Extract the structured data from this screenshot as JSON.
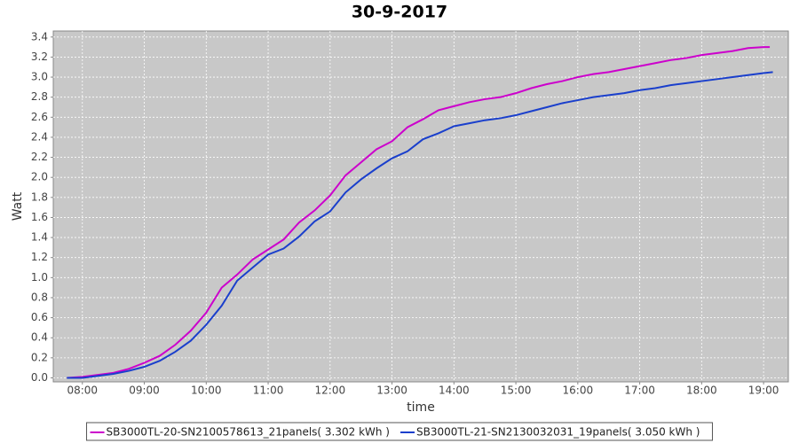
{
  "chart_data": {
    "type": "line",
    "title": "30-9-2017",
    "x_label": "time",
    "y_label": "Watt",
    "xlim": [
      7.53,
      19.4
    ],
    "ylim": [
      -0.04,
      3.46
    ],
    "xticks": [
      {
        "value": 8,
        "label": "08:00"
      },
      {
        "value": 9,
        "label": "09:00"
      },
      {
        "value": 10,
        "label": "10:00"
      },
      {
        "value": 11,
        "label": "11:00"
      },
      {
        "value": 12,
        "label": "12:00"
      },
      {
        "value": 13,
        "label": "13:00"
      },
      {
        "value": 14,
        "label": "14:00"
      },
      {
        "value": 15,
        "label": "15:00"
      },
      {
        "value": 16,
        "label": "16:00"
      },
      {
        "value": 17,
        "label": "17:00"
      },
      {
        "value": 18,
        "label": "18:00"
      },
      {
        "value": 19,
        "label": "19:00"
      }
    ],
    "yticks": [
      {
        "value": 0,
        "label": "0.0"
      },
      0.2,
      0.4,
      0.6,
      0.8,
      {
        "value": 1,
        "label": "1.0"
      },
      1.2,
      1.4,
      1.6,
      1.8,
      {
        "value": 2,
        "label": "2.0"
      },
      2.2,
      2.4,
      2.6,
      2.8,
      {
        "value": 3,
        "label": "3.0"
      },
      3.2,
      3.4
    ],
    "grid": true,
    "legend": "bottom",
    "series": [
      {
        "name": "SB3000TL-20-SN2100578613_21panels( 3.302 kWh )",
        "color": "#cc00cc",
        "x": [
          7.75,
          8,
          8.25,
          8.5,
          8.75,
          9,
          9.25,
          9.5,
          9.75,
          10,
          10.25,
          10.5,
          10.75,
          11,
          11.25,
          11.5,
          11.75,
          12,
          12.25,
          12.5,
          12.75,
          13,
          13.25,
          13.5,
          13.75,
          14,
          14.25,
          14.5,
          14.75,
          15,
          15.25,
          15.5,
          15.75,
          16,
          16.25,
          16.5,
          16.75,
          17,
          17.25,
          17.5,
          17.75,
          18,
          18.25,
          18.5,
          18.75,
          19,
          19.1
        ],
        "values": [
          0,
          0.01,
          0.03,
          0.05,
          0.09,
          0.15,
          0.22,
          0.33,
          0.47,
          0.65,
          0.9,
          1.03,
          1.18,
          1.28,
          1.38,
          1.55,
          1.67,
          1.82,
          2.02,
          2.15,
          2.28,
          2.36,
          2.5,
          2.58,
          2.67,
          2.71,
          2.75,
          2.78,
          2.8,
          2.84,
          2.89,
          2.93,
          2.96,
          3.0,
          3.03,
          3.05,
          3.08,
          3.11,
          3.14,
          3.17,
          3.19,
          3.22,
          3.24,
          3.26,
          3.29,
          3.3,
          3.3
        ]
      },
      {
        "name": "SB3000TL-21-SN2130032031_19panels( 3.050 kWh )",
        "color": "#1a3fcc",
        "x": [
          7.75,
          8,
          8.25,
          8.5,
          8.75,
          9,
          9.25,
          9.5,
          9.75,
          10,
          10.25,
          10.5,
          10.75,
          11,
          11.25,
          11.5,
          11.75,
          12,
          12.25,
          12.5,
          12.75,
          13,
          13.25,
          13.5,
          13.75,
          14,
          14.25,
          14.5,
          14.75,
          15,
          15.25,
          15.5,
          15.75,
          16,
          16.25,
          16.5,
          16.75,
          17,
          17.25,
          17.5,
          17.75,
          18,
          18.25,
          18.5,
          18.75,
          19,
          19.15
        ],
        "values": [
          0,
          0,
          0.02,
          0.04,
          0.07,
          0.11,
          0.17,
          0.26,
          0.37,
          0.53,
          0.72,
          0.97,
          1.1,
          1.23,
          1.29,
          1.41,
          1.56,
          1.66,
          1.85,
          1.98,
          2.09,
          2.19,
          2.26,
          2.38,
          2.44,
          2.51,
          2.54,
          2.57,
          2.59,
          2.62,
          2.66,
          2.7,
          2.74,
          2.77,
          2.8,
          2.82,
          2.84,
          2.87,
          2.89,
          2.92,
          2.94,
          2.96,
          2.98,
          3.0,
          3.02,
          3.04,
          3.05
        ]
      }
    ]
  }
}
